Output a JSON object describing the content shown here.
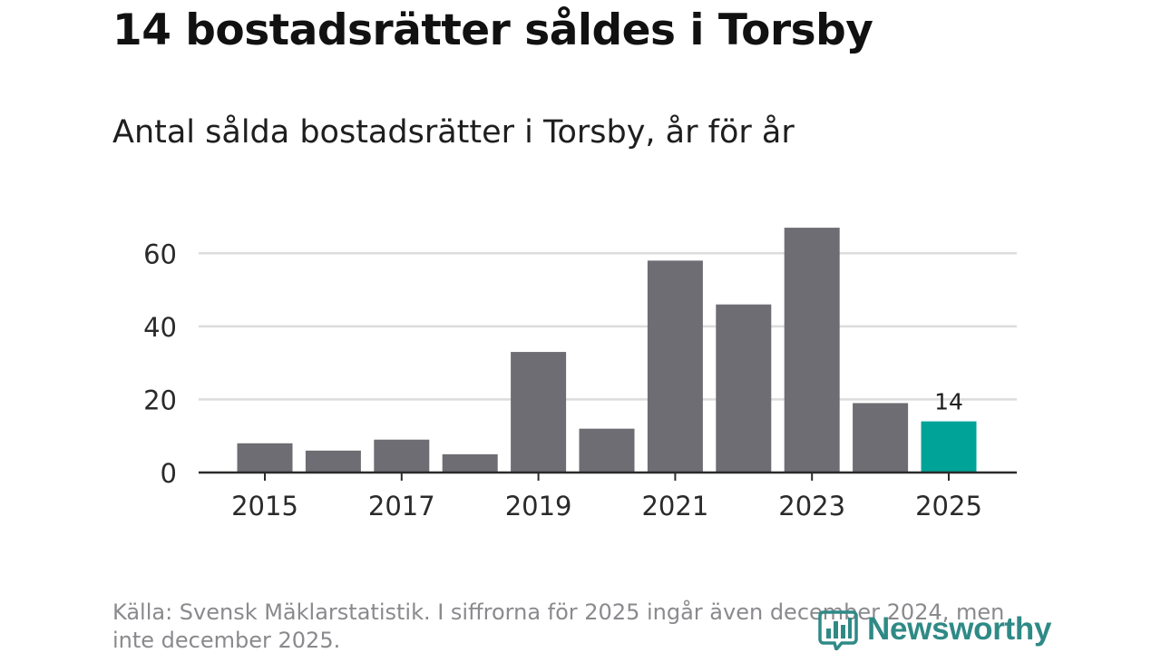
{
  "title": "14 bostadsrätter såldes i Torsby",
  "subtitle": "Antal sålda bostadsrätter i Torsby, år för år",
  "chart_data": {
    "type": "bar",
    "categories": [
      "2015",
      "2016",
      "2017",
      "2018",
      "2019",
      "2020",
      "2021",
      "2022",
      "2023",
      "2024",
      "2025"
    ],
    "values": [
      8,
      6,
      9,
      5,
      33,
      12,
      58,
      46,
      67,
      19,
      14
    ],
    "ylim": [
      0,
      70
    ],
    "yticks": [
      "0",
      "20",
      "40",
      "60"
    ],
    "xticks": [
      "2015",
      "2017",
      "2019",
      "2021",
      "2023",
      "2025"
    ],
    "grid": true,
    "highlight_index": 10,
    "highlight_label": "14",
    "bar_color": "#6e6d73",
    "highlight_color": "#00a398",
    "xlabel": "",
    "ylabel": ""
  },
  "source": "Källa: Svensk Mäklarstatistik. I siffrorna för 2025 ingår även december 2024, men inte december 2025.",
  "logo": {
    "text": "Newsworthy",
    "icon": "bar-chart-logo-icon",
    "color": "#2f8a86"
  }
}
